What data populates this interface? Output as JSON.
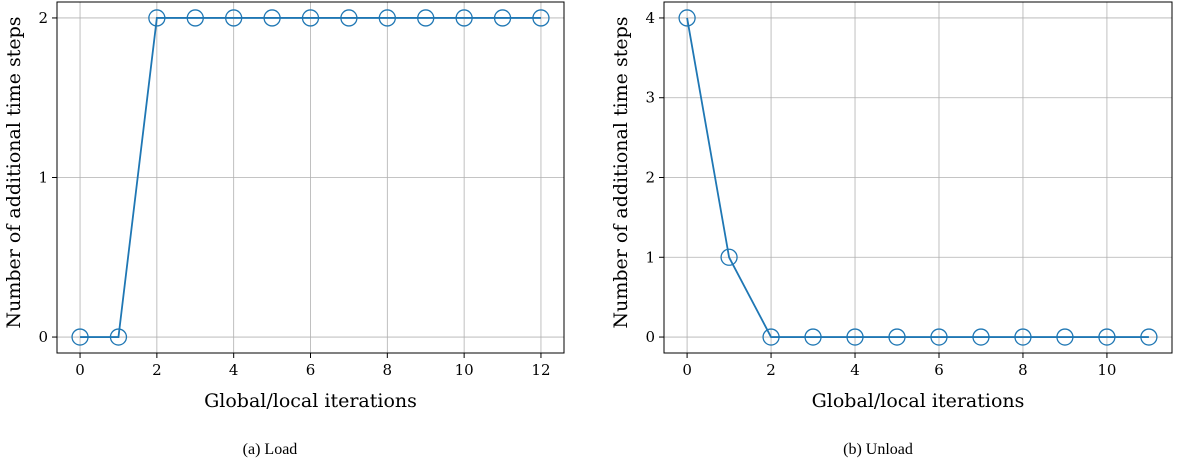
{
  "chart_data": [
    {
      "type": "line",
      "caption": "(a) Load",
      "xlabel": "Global/local iterations",
      "ylabel": "Number of additional time steps",
      "xlim": [
        -0.6,
        12.6
      ],
      "ylim": [
        -0.1,
        2.1
      ],
      "xticks": [
        0,
        2,
        4,
        6,
        8,
        10,
        12
      ],
      "yticks": [
        0,
        1,
        2
      ],
      "grid": true,
      "marker": "circle-open",
      "color": "#1f77b4",
      "series": [
        {
          "x": [
            0,
            1,
            2,
            3,
            4,
            5,
            6,
            7,
            8,
            9,
            10,
            11,
            12
          ],
          "values": [
            0,
            0,
            2,
            2,
            2,
            2,
            2,
            2,
            2,
            2,
            2,
            2,
            2
          ]
        }
      ]
    },
    {
      "type": "line",
      "caption": "(b) Unload",
      "xlabel": "Global/local iterations",
      "ylabel": "Number of additional time steps",
      "xlim": [
        -0.55,
        11.55
      ],
      "ylim": [
        -0.2,
        4.2
      ],
      "xticks": [
        0,
        2,
        4,
        6,
        8,
        10
      ],
      "yticks": [
        0,
        1,
        2,
        3,
        4
      ],
      "grid": true,
      "marker": "circle-open",
      "color": "#1f77b4",
      "series": [
        {
          "x": [
            0,
            1,
            2,
            3,
            4,
            5,
            6,
            7,
            8,
            9,
            10,
            11
          ],
          "values": [
            4,
            1,
            0,
            0,
            0,
            0,
            0,
            0,
            0,
            0,
            0,
            0
          ]
        }
      ]
    }
  ]
}
